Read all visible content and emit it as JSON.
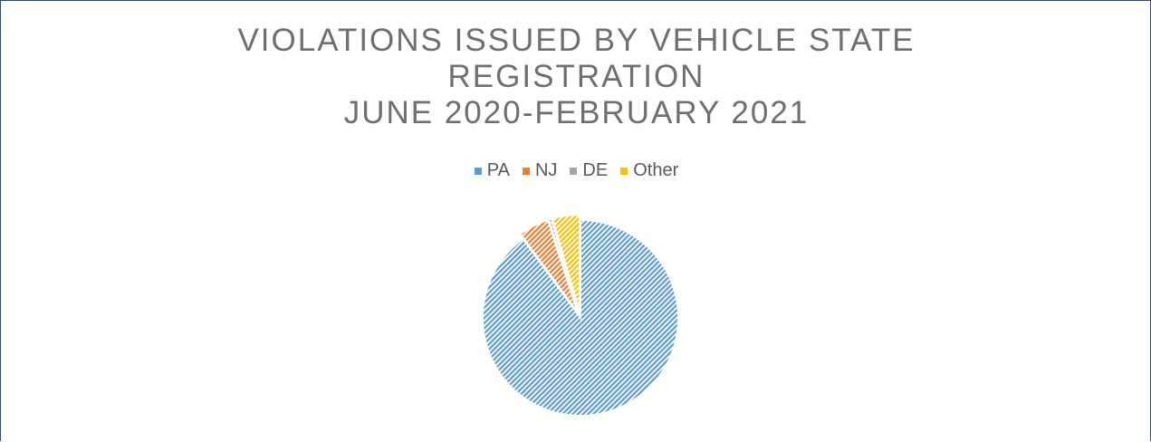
{
  "chart_data": {
    "type": "pie",
    "title": "VIOLATIONS ISSUED BY VEHICLE STATE REGISTRATION",
    "subtitle": "JUNE 2020-FEBRUARY 2021",
    "categories": [
      "PA",
      "NJ",
      "DE",
      "Other"
    ],
    "values": [
      90,
      5,
      0.5,
      4.5
    ],
    "colors": [
      "#5b9bd5",
      "#ed7d31",
      "#a5a5a5",
      "#ffc000"
    ],
    "legend": "top"
  }
}
